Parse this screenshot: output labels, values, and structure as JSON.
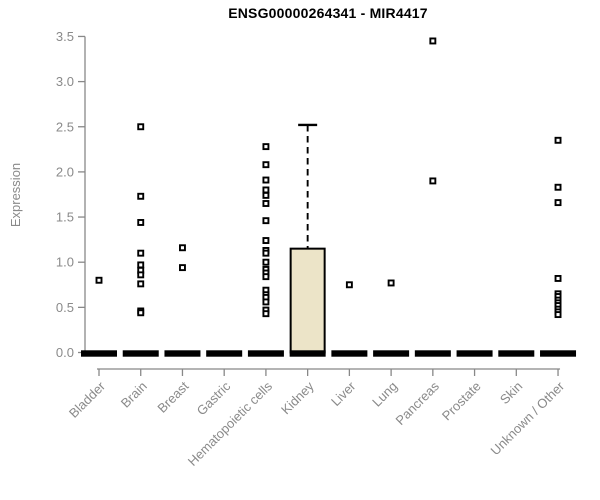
{
  "chart_data": {
    "type": "boxplot",
    "title": "ENSG00000264341 - MIR4417",
    "ylabel": "Expression",
    "xlabel": "",
    "ylim": [
      0,
      3.5
    ],
    "yticks": [
      "0.0",
      "0.5",
      "1.0",
      "1.5",
      "2.0",
      "2.5",
      "3.0",
      "3.5"
    ],
    "grid": false,
    "legend": false,
    "colors": {
      "box_fill": "#ece4c8",
      "box_stroke": "#000000",
      "median_line": "#000000",
      "outlier_stroke": "#000000",
      "axis_text": "#8a8a8a",
      "axis_line": "#888888",
      "title_text": "#000000",
      "background": "#ffffff"
    },
    "categories": [
      "Bladder",
      "Brain",
      "Breast",
      "Gastric",
      "Hematopoietic cells",
      "Kidney",
      "Liver",
      "Lung",
      "Pancreas",
      "Prostate",
      "Skin",
      "Unknown / Other"
    ],
    "series": [
      {
        "category": "Bladder",
        "q1": 0,
        "median": 0,
        "q3": 0,
        "whisker_low": 0,
        "whisker_high": 0,
        "outliers": [
          0.8
        ]
      },
      {
        "category": "Brain",
        "q1": 0,
        "median": 0,
        "q3": 0,
        "whisker_low": 0,
        "whisker_high": 0,
        "outliers": [
          2.5,
          1.73,
          1.44,
          1.1,
          0.97,
          0.91,
          0.86,
          0.76,
          0.46,
          0.44
        ]
      },
      {
        "category": "Breast",
        "q1": 0,
        "median": 0,
        "q3": 0,
        "whisker_low": 0,
        "whisker_high": 0,
        "outliers": [
          1.16,
          0.94
        ]
      },
      {
        "category": "Gastric",
        "q1": 0,
        "median": 0,
        "q3": 0,
        "whisker_low": 0,
        "whisker_high": 0,
        "outliers": []
      },
      {
        "category": "Hematopoietic cells",
        "q1": 0,
        "median": 0,
        "q3": 0,
        "whisker_low": 0,
        "whisker_high": 0,
        "outliers": [
          2.28,
          2.08,
          1.91,
          1.8,
          1.74,
          1.65,
          1.46,
          1.24,
          1.13,
          1.1,
          1.0,
          0.92,
          0.88,
          0.84,
          0.69,
          0.64,
          0.61,
          0.56,
          0.47,
          0.43
        ]
      },
      {
        "category": "Kidney",
        "q1": 0,
        "median": 0,
        "q3": 1.15,
        "whisker_low": 0,
        "whisker_high": 2.52,
        "outliers": []
      },
      {
        "category": "Liver",
        "q1": 0,
        "median": 0,
        "q3": 0,
        "whisker_low": 0,
        "whisker_high": 0,
        "outliers": [
          0.75
        ]
      },
      {
        "category": "Lung",
        "q1": 0,
        "median": 0,
        "q3": 0,
        "whisker_low": 0,
        "whisker_high": 0,
        "outliers": [
          0.77
        ]
      },
      {
        "category": "Pancreas",
        "q1": 0,
        "median": 0,
        "q3": 0,
        "whisker_low": 0,
        "whisker_high": 0,
        "outliers": [
          3.45,
          1.9
        ]
      },
      {
        "category": "Prostate",
        "q1": 0,
        "median": 0,
        "q3": 0,
        "whisker_low": 0,
        "whisker_high": 0,
        "outliers": []
      },
      {
        "category": "Skin",
        "q1": 0,
        "median": 0,
        "q3": 0,
        "whisker_low": 0,
        "whisker_high": 0,
        "outliers": []
      },
      {
        "category": "Unknown / Other",
        "q1": 0,
        "median": 0,
        "q3": 0,
        "whisker_low": 0,
        "whisker_high": 0,
        "outliers": [
          2.35,
          1.83,
          1.66,
          0.82,
          0.65,
          0.62,
          0.58,
          0.55,
          0.52,
          0.48,
          0.45,
          0.42
        ]
      }
    ]
  }
}
